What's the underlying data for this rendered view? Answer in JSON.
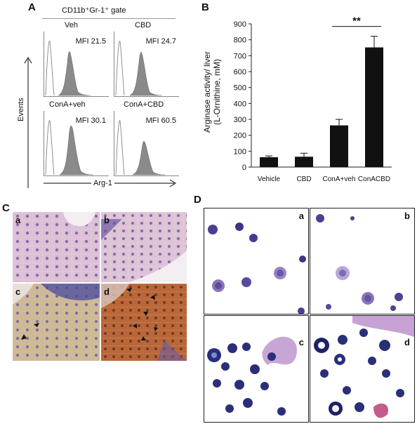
{
  "panel_a": {
    "letter": "A",
    "gate_label": "CD11b⁺Gr-1⁺ gate",
    "y_axis_label": "Events",
    "x_axis_label": "Arg-1",
    "histograms": [
      {
        "group": "Veh",
        "mfi": "MFI 21.5"
      },
      {
        "group": "CBD",
        "mfi": "MFI 24.7"
      },
      {
        "group": "ConA+veh",
        "mfi": "MFI 30.1"
      },
      {
        "group": "ConA+CBD",
        "mfi": "MFI 60.5"
      }
    ]
  },
  "panel_b": {
    "letter": "B",
    "significance": "**"
  },
  "panel_c": {
    "letter": "C",
    "sublabels": [
      "a",
      "b",
      "c",
      "d"
    ]
  },
  "panel_d": {
    "letter": "D",
    "sublabels": [
      "a",
      "b",
      "c",
      "d"
    ]
  },
  "chart_data": {
    "type": "bar",
    "categories": [
      "Vehicle",
      "CBD",
      "ConA+veh",
      "ConACBD"
    ],
    "values": [
      62,
      65,
      262,
      752
    ],
    "errors": [
      8,
      22,
      38,
      70
    ],
    "ylabel": "Arginase activity/ liver (L-Ornithine, mM)",
    "ylabel_lines": [
      "Arginase activity/ liver",
      "(L-Ornithine, mM)"
    ],
    "ylim": [
      0,
      900
    ],
    "yticks": [
      0,
      100,
      200,
      300,
      400,
      500,
      600,
      700,
      800,
      900
    ],
    "bar_color": "#111111",
    "significance_pair": [
      2,
      3
    ]
  }
}
